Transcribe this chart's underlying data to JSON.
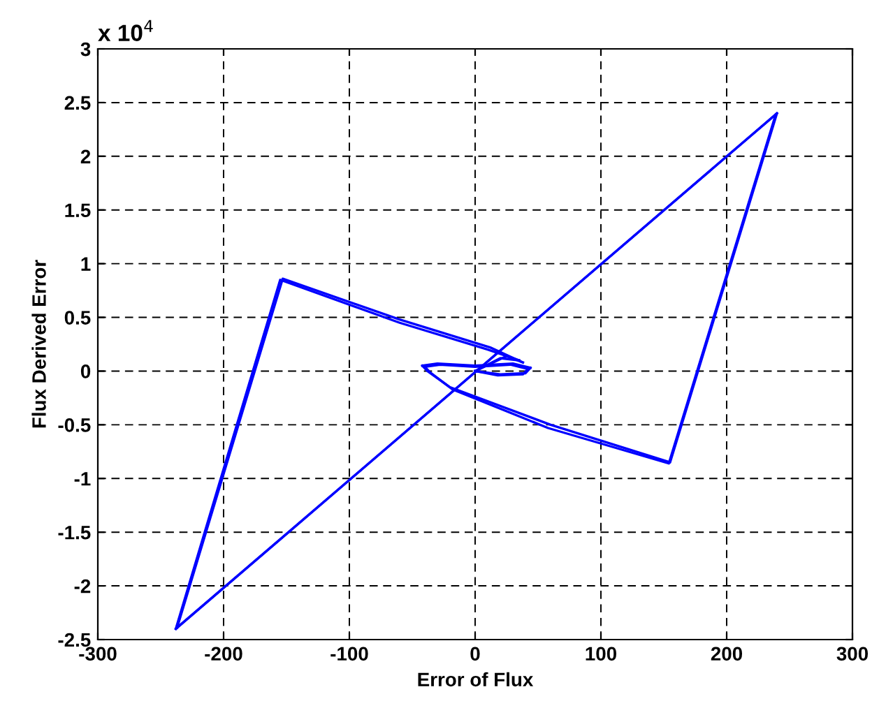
{
  "chart_data": {
    "type": "line",
    "xlabel": "Error of Flux",
    "ylabel": "Flux Derived Error",
    "annotations": [
      "x 10$^{4}$"
    ],
    "series": [
      {
        "color": "#0000ff",
        "x": [
          0,
          20,
          35
        ],
        "values": [
          0,
          0.12,
          0.1
        ]
      },
      {
        "color": "#0000ff",
        "x": [
          35,
          10,
          -60,
          -155,
          -238
        ],
        "values": [
          0.1,
          0.2,
          0.45,
          0.85,
          -2.4
        ]
      },
      {
        "color": "#0000ff",
        "x": [
          -238,
          240
        ],
        "values": [
          -2.4,
          2.4
        ]
      },
      {
        "color": "#0000ff",
        "x": [
          240,
          155,
          60,
          -20,
          -38,
          -42
        ],
        "values": [
          2.4,
          -0.85,
          -0.5,
          -0.15,
          0.0,
          0.05
        ]
      },
      {
        "color": "#0000ff",
        "x": [
          -42,
          -30,
          0,
          30,
          44
        ],
        "values": [
          0.05,
          0.07,
          0.05,
          0.07,
          0.03
        ]
      },
      {
        "color": "#0000ff",
        "x": [
          44,
          40,
          20,
          0
        ],
        "values": [
          0.03,
          -0.02,
          -0.03,
          0.0
        ]
      },
      {
        "color": "#0000ff",
        "x": [
          0,
          25,
          38
        ],
        "values": [
          0.0,
          0.14,
          0.08
        ]
      },
      {
        "color": "#0000ff",
        "x": [
          38,
          12,
          -60,
          -153,
          -237
        ],
        "values": [
          0.08,
          0.22,
          0.48,
          0.86,
          -2.39
        ]
      },
      {
        "color": "#0000ff",
        "x": [
          -237,
          239
        ],
        "values": [
          -2.39,
          2.39
        ]
      },
      {
        "color": "#0000ff",
        "x": [
          239,
          154,
          58,
          -18,
          -36,
          -40
        ],
        "values": [
          2.39,
          -0.86,
          -0.53,
          -0.17,
          -0.01,
          0.04
        ]
      },
      {
        "color": "#0000ff",
        "x": [
          -40,
          -28,
          0,
          28,
          42
        ],
        "values": [
          0.04,
          0.06,
          0.04,
          0.06,
          0.02
        ]
      },
      {
        "color": "#0000ff",
        "x": [
          42,
          38,
          18,
          0
        ],
        "values": [
          0.02,
          -0.03,
          -0.04,
          0
        ]
      }
    ],
    "xlim": [
      -300,
      300
    ],
    "ylim": [
      -2.5,
      3
    ],
    "xticks": [
      {
        "value": -300,
        "label": "-300"
      },
      {
        "value": -200,
        "label": "-200"
      },
      {
        "value": -100,
        "label": "-100"
      },
      0,
      100,
      200,
      300
    ],
    "yticks": [
      {
        "value": -2.5,
        "label": "-2.5"
      },
      {
        "value": -2,
        "label": "-2"
      },
      {
        "value": -1.5,
        "label": "-1.5"
      },
      {
        "value": -1,
        "label": "-1"
      },
      {
        "value": -0.5,
        "label": "-0.5"
      },
      0,
      0.5,
      1,
      1.5,
      2,
      2.5,
      3
    ],
    "grid": true,
    "line_style": "solid",
    "marker": "none"
  }
}
